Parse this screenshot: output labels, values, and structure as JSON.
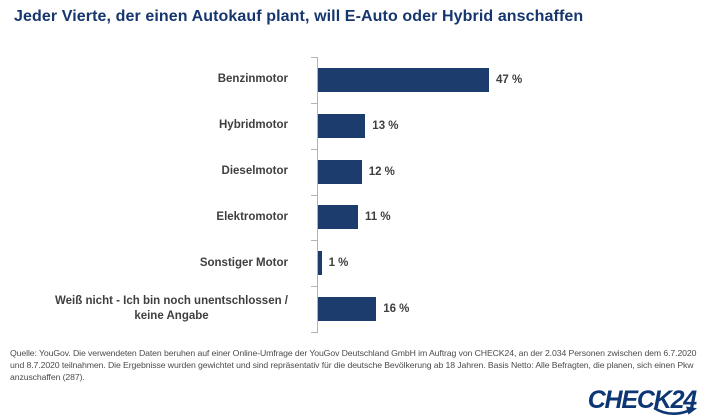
{
  "page": {
    "title": "Jeder Vierte, der einen Autokauf plant, will E-Auto oder Hybrid anschaffen"
  },
  "chart_data": {
    "type": "bar",
    "orientation": "horizontal",
    "title": "Jeder Vierte, der einen Autokauf plant, will E-Auto oder Hybrid anschaffen",
    "categories": [
      "Benzinmotor",
      "Hybridmotor",
      "Dieselmotor",
      "Elektromotor",
      "Sonstiger Motor",
      "Weiß nicht - Ich bin noch unentschlossen /\nkeine Angabe"
    ],
    "values": [
      47,
      13,
      12,
      11,
      1,
      16
    ],
    "value_labels": [
      "47 %",
      "13 %",
      "12 %",
      "11 %",
      "1 %",
      "16 %"
    ],
    "unit": "%",
    "xlim": [
      0,
      50
    ],
    "grid": false,
    "legend": false,
    "bar_color": "#1c3c6e"
  },
  "source": {
    "text": "Quelle: YouGov. Die verwendeten Daten beruhen auf einer Online-Umfrage der YouGov Deutschland GmbH im Auftrag von CHECK24, an der 2.034 Personen zwischen dem 6.7.2020 und 8.7.2020 teilnahmen. Die Ergebnisse wurden gewichtet und sind repräsentativ für die deutsche Bevölkerung ab 18 Jahren. Basis Netto: Alle Befragten, die planen, sich einen Pkw anzuschaffen (287)."
  },
  "branding": {
    "logo_text": "CHECK24"
  },
  "colors": {
    "title": "#16366e",
    "bar": "#1c3c6e",
    "category_label": "#3f3f3f",
    "value_label": "#3f3f3f",
    "source_text": "#4c4c4c",
    "axis": "#b3b3b3",
    "logo": "#0c3674"
  }
}
